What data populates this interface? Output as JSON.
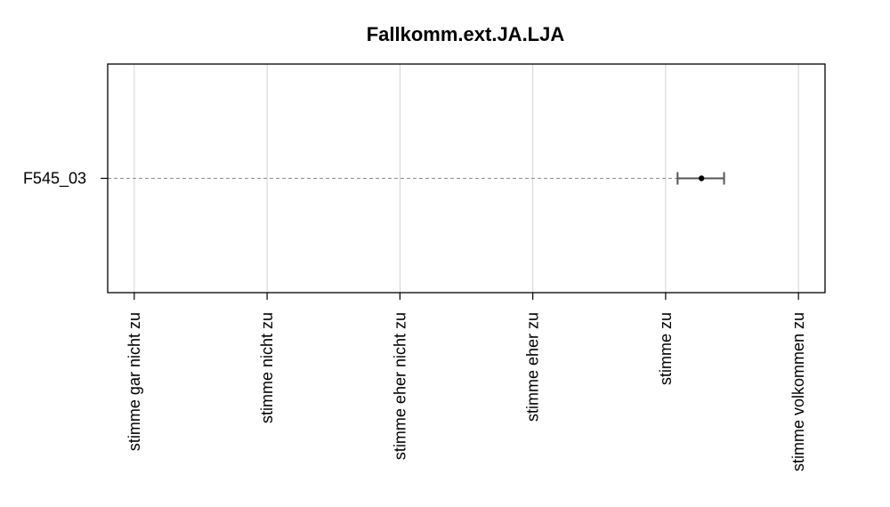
{
  "chart_data": {
    "type": "scatter",
    "title": "Fallkomm.ext.JA.LJA",
    "xlabel": "",
    "ylabel": "",
    "x_ticks": [
      "stimme gar nicht zu",
      "stimme nicht zu",
      "stimme eher nicht zu",
      "stimme eher zu",
      "stimme zu",
      "stimme volkommen zu"
    ],
    "xlim": [
      0.8,
      6.2
    ],
    "grid": true,
    "categories": [
      "F545_03"
    ],
    "series": [
      {
        "mean": 5.27,
        "ci_low": 5.09,
        "ci_high": 5.44,
        "color": "#000000"
      }
    ]
  }
}
